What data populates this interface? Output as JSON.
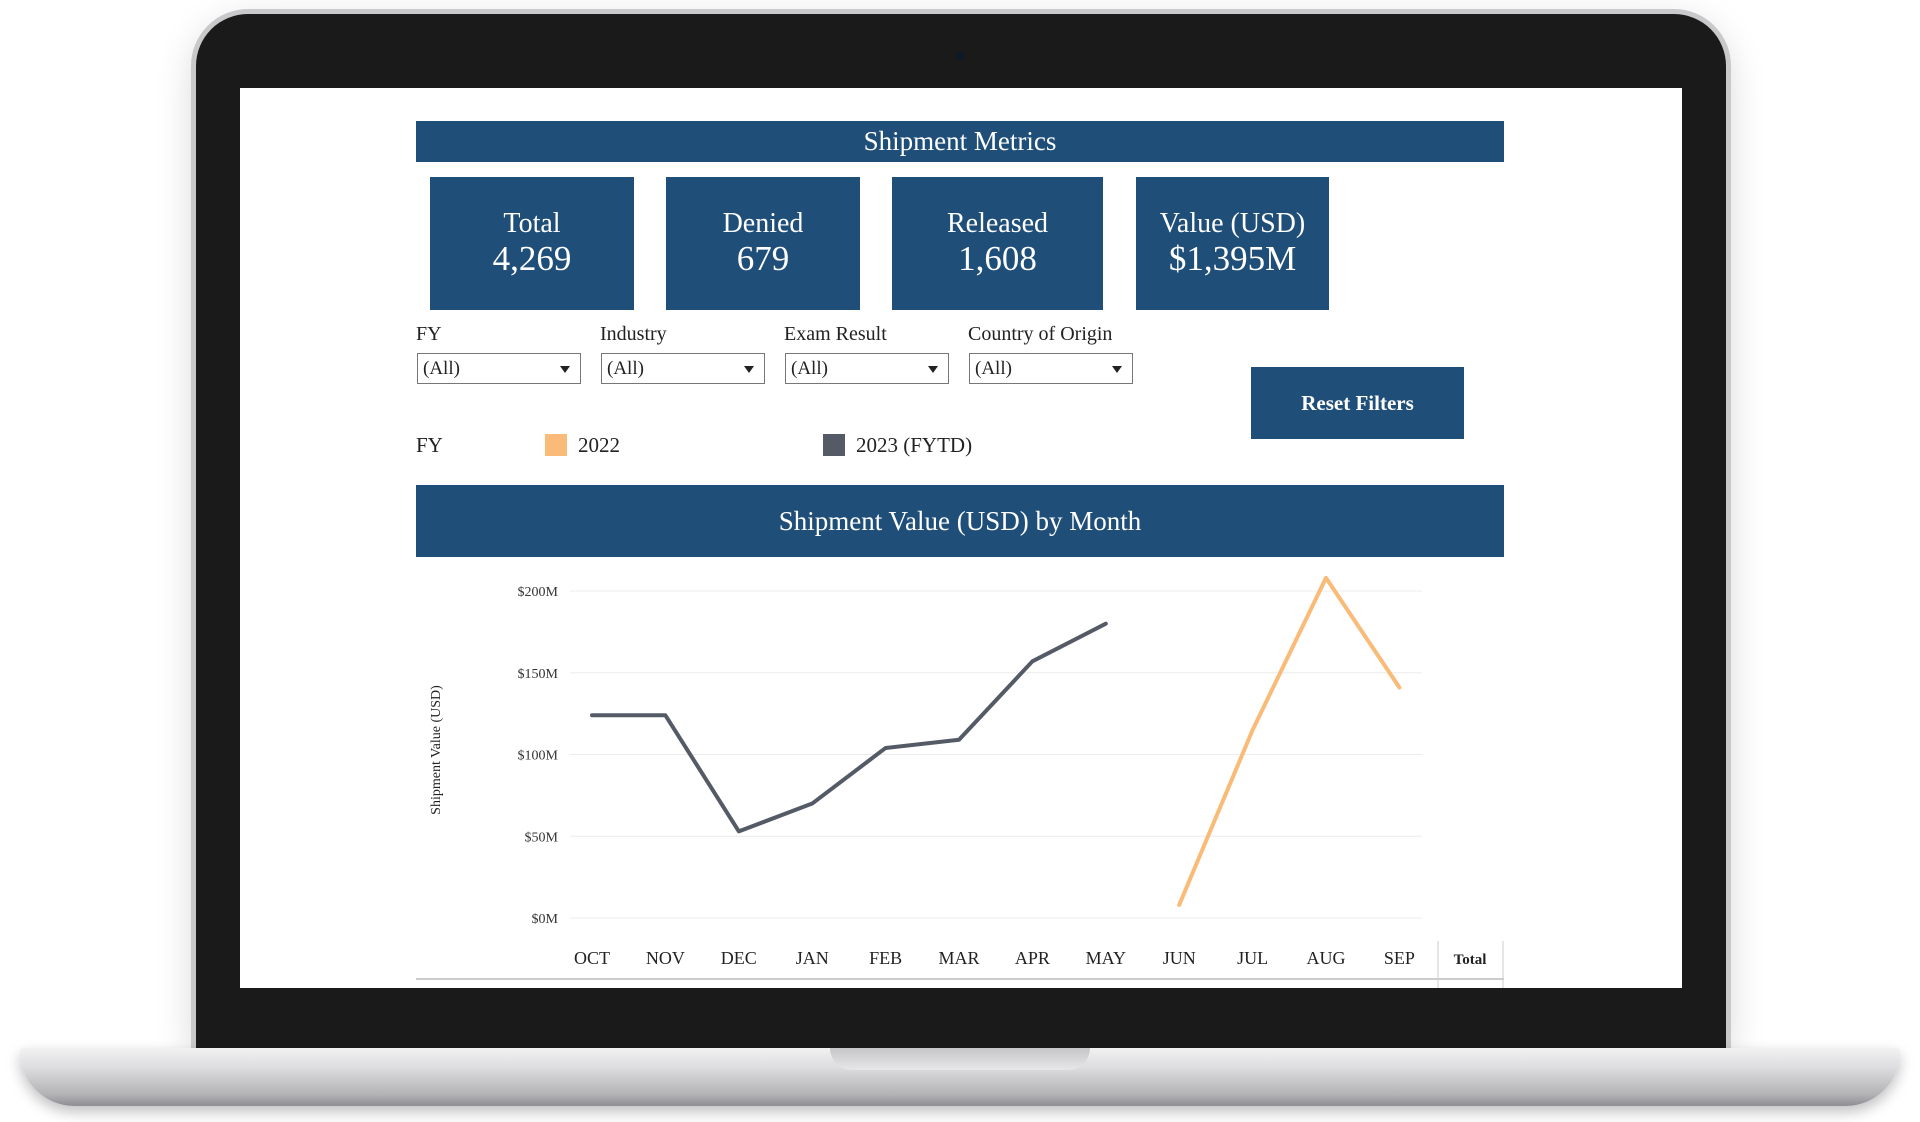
{
  "dashboard": {
    "header_title": "Shipment Metrics",
    "kpis": [
      {
        "label": "Total",
        "value": "4,269"
      },
      {
        "label": "Denied",
        "value": "679"
      },
      {
        "label": "Released",
        "value": "1,608"
      },
      {
        "label": "Value (USD)",
        "value": "$1,395M"
      }
    ],
    "filters": [
      {
        "label": "FY",
        "selected": "(All)"
      },
      {
        "label": "Industry",
        "selected": "(All)"
      },
      {
        "label": "Exam Result",
        "selected": "(All)"
      },
      {
        "label": "Country of Origin",
        "selected": "(All)"
      }
    ],
    "reset_button": "Reset Filters",
    "legend": {
      "title": "FY",
      "items": [
        {
          "label": "2022",
          "color": "#f9bb77"
        },
        {
          "label": "2023 (FYTD)",
          "color": "#545a66"
        }
      ]
    },
    "chart_title": "Shipment Value (USD) by Month"
  },
  "chart_data": {
    "type": "line",
    "title": "Shipment Value (USD) by Month",
    "xlabel": "",
    "ylabel": "Shipment Value (USD)",
    "categories": [
      "OCT",
      "NOV",
      "DEC",
      "JAN",
      "FEB",
      "MAR",
      "APR",
      "MAY",
      "JUN",
      "JUL",
      "AUG",
      "SEP"
    ],
    "total_column_label": "Total",
    "y_ticks": [
      "$0M",
      "$50M",
      "$100M",
      "$150M",
      "$200M"
    ],
    "ylim": [
      0,
      200
    ],
    "y_unit": "$M",
    "grid": true,
    "series": [
      {
        "name": "2023 (FYTD)",
        "color": "#545a66",
        "values": [
          124,
          124,
          53,
          70,
          104,
          109,
          157,
          180,
          null,
          null,
          null,
          null
        ]
      },
      {
        "name": "2022",
        "color": "#f9bb77",
        "values": [
          null,
          null,
          null,
          null,
          null,
          null,
          null,
          null,
          8,
          115,
          208,
          141
        ]
      }
    ]
  }
}
